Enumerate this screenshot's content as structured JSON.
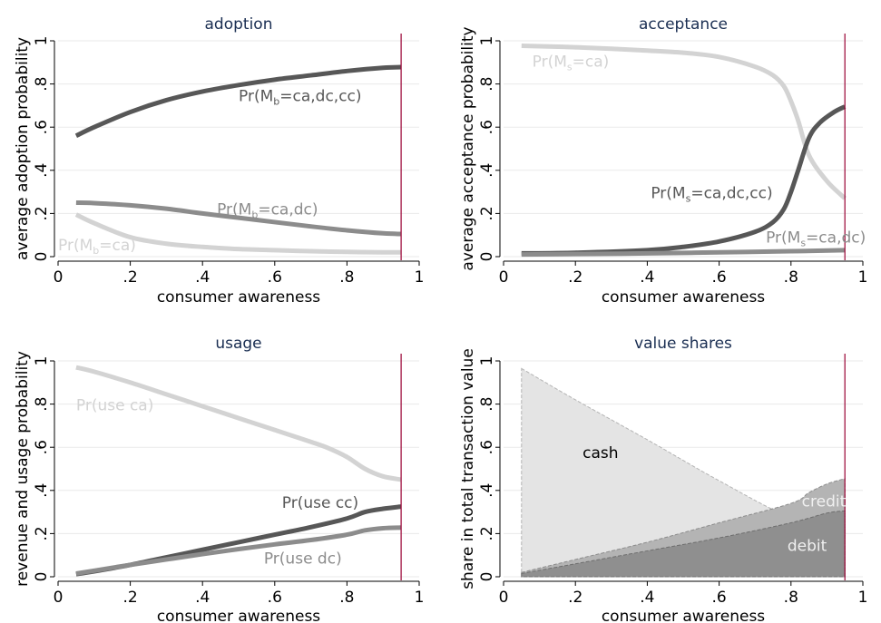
{
  "chart_data": [
    {
      "type": "line",
      "title": "adoption",
      "xlabel": "consumer awareness",
      "ylabel": "average adoption probability",
      "xlim": [
        0,
        1
      ],
      "ylim": [
        0,
        1
      ],
      "xticks": [
        "0",
        ".2",
        ".4",
        ".6",
        ".8",
        "1"
      ],
      "yticks": [
        "0",
        ".2",
        ".4",
        ".6",
        ".8",
        "1"
      ],
      "grid": true,
      "vline_x": 0.95,
      "vline_color": "#990033",
      "series": [
        {
          "name": "Pr(Mb=ca,dc,cc)",
          "label": {
            "main": "Pr(M",
            "sub": "b",
            "rest": "=ca,dc,cc)"
          },
          "color": "#575757",
          "x": [
            0.05,
            0.1,
            0.2,
            0.3,
            0.4,
            0.5,
            0.6,
            0.7,
            0.8,
            0.9,
            0.95
          ],
          "y": [
            0.56,
            0.6,
            0.67,
            0.725,
            0.765,
            0.795,
            0.82,
            0.84,
            0.86,
            0.875,
            0.878
          ]
        },
        {
          "name": "Pr(Mb=ca,dc)",
          "label": {
            "main": "Pr(M",
            "sub": "b",
            "rest": "=ca,dc)"
          },
          "color": "#8c8c8c",
          "x": [
            0.05,
            0.1,
            0.2,
            0.3,
            0.4,
            0.5,
            0.6,
            0.7,
            0.8,
            0.9,
            0.95
          ],
          "y": [
            0.25,
            0.248,
            0.238,
            0.222,
            0.2,
            0.18,
            0.16,
            0.14,
            0.122,
            0.108,
            0.105
          ]
        },
        {
          "name": "Pr(Mb=ca)",
          "label": {
            "main": "Pr(M",
            "sub": "b",
            "rest": "=ca)"
          },
          "color": "#d3d3d3",
          "x": [
            0.05,
            0.1,
            0.2,
            0.3,
            0.4,
            0.5,
            0.6,
            0.7,
            0.8,
            0.9,
            0.95
          ],
          "y": [
            0.195,
            0.155,
            0.09,
            0.06,
            0.045,
            0.035,
            0.03,
            0.025,
            0.022,
            0.02,
            0.02
          ]
        }
      ]
    },
    {
      "type": "line",
      "title": "acceptance",
      "xlabel": "consumer awareness",
      "ylabel": "average acceptance probability",
      "xlim": [
        0,
        1
      ],
      "ylim": [
        0,
        1
      ],
      "xticks": [
        "0",
        ".2",
        ".4",
        ".6",
        ".8",
        "1"
      ],
      "yticks": [
        "0",
        ".2",
        ".4",
        ".6",
        ".8",
        "1"
      ],
      "grid": true,
      "vline_x": 0.95,
      "vline_color": "#990033",
      "series": [
        {
          "name": "Pr(Ms=ca)",
          "label": {
            "main": "Pr(M",
            "sub": "s",
            "rest": "=ca)"
          },
          "color": "#d3d3d3",
          "x": [
            0.05,
            0.1,
            0.2,
            0.3,
            0.4,
            0.5,
            0.6,
            0.7,
            0.75,
            0.78,
            0.8,
            0.82,
            0.85,
            0.9,
            0.95
          ],
          "y": [
            0.977,
            0.975,
            0.97,
            0.963,
            0.955,
            0.945,
            0.925,
            0.88,
            0.84,
            0.79,
            0.72,
            0.63,
            0.47,
            0.35,
            0.27
          ]
        },
        {
          "name": "Pr(Ms=ca,dc,cc)",
          "label": {
            "main": "Pr(M",
            "sub": "s",
            "rest": "=ca,dc,cc)"
          },
          "color": "#575757",
          "x": [
            0.05,
            0.2,
            0.4,
            0.5,
            0.6,
            0.7,
            0.75,
            0.78,
            0.8,
            0.82,
            0.85,
            0.88,
            0.92,
            0.95
          ],
          "y": [
            0.015,
            0.018,
            0.03,
            0.045,
            0.07,
            0.115,
            0.16,
            0.22,
            0.3,
            0.4,
            0.55,
            0.62,
            0.67,
            0.695
          ]
        },
        {
          "name": "Pr(Ms=ca,dc)",
          "label": {
            "main": "Pr(M",
            "sub": "s",
            "rest": "=ca,dc)"
          },
          "color": "#8c8c8c",
          "x": [
            0.05,
            0.2,
            0.4,
            0.6,
            0.8,
            0.95
          ],
          "y": [
            0.01,
            0.012,
            0.015,
            0.02,
            0.025,
            0.03
          ]
        }
      ]
    },
    {
      "type": "line",
      "title": "usage",
      "xlabel": "consumer awareness",
      "ylabel": "revenue and usage probability",
      "xlim": [
        0,
        1
      ],
      "ylim": [
        0,
        1
      ],
      "xticks": [
        "0",
        ".2",
        ".4",
        ".6",
        ".8",
        "1"
      ],
      "yticks": [
        "0",
        ".2",
        ".4",
        ".6",
        ".8",
        "1"
      ],
      "grid": true,
      "vline_x": 0.95,
      "vline_color": "#990033",
      "series": [
        {
          "name": "Pr(use ca)",
          "label": {
            "main": "Pr(use ca)",
            "sub": "",
            "rest": ""
          },
          "color": "#d3d3d3",
          "x": [
            0.05,
            0.1,
            0.2,
            0.3,
            0.4,
            0.5,
            0.6,
            0.7,
            0.75,
            0.8,
            0.85,
            0.9,
            0.95
          ],
          "y": [
            0.97,
            0.95,
            0.9,
            0.845,
            0.79,
            0.735,
            0.68,
            0.625,
            0.595,
            0.555,
            0.5,
            0.465,
            0.45
          ]
        },
        {
          "name": "Pr(use cc)",
          "label": {
            "main": "Pr(use cc)",
            "sub": "",
            "rest": ""
          },
          "color": "#575757",
          "x": [
            0.05,
            0.1,
            0.2,
            0.3,
            0.4,
            0.5,
            0.6,
            0.7,
            0.8,
            0.85,
            0.9,
            0.95
          ],
          "y": [
            0.012,
            0.025,
            0.055,
            0.09,
            0.125,
            0.16,
            0.195,
            0.23,
            0.27,
            0.3,
            0.315,
            0.325
          ]
        },
        {
          "name": "Pr(use dc)",
          "label": {
            "main": "Pr(use dc)",
            "sub": "",
            "rest": ""
          },
          "color": "#8c8c8c",
          "x": [
            0.05,
            0.1,
            0.2,
            0.3,
            0.4,
            0.5,
            0.6,
            0.7,
            0.8,
            0.85,
            0.9,
            0.95
          ],
          "y": [
            0.015,
            0.028,
            0.055,
            0.08,
            0.105,
            0.128,
            0.15,
            0.17,
            0.195,
            0.215,
            0.225,
            0.228
          ]
        }
      ]
    },
    {
      "type": "area",
      "title": "value shares",
      "xlabel": "consumer awareness",
      "ylabel": "share in total transaction value",
      "xlim": [
        0,
        1
      ],
      "ylim": [
        0,
        1
      ],
      "xticks": [
        "0",
        ".2",
        ".4",
        ".6",
        ".8",
        "1"
      ],
      "yticks": [
        "0",
        ".2",
        ".4",
        ".6",
        ".8",
        "1"
      ],
      "grid": true,
      "vline_x": 0.95,
      "vline_color": "#990033",
      "series": [
        {
          "name": "cash",
          "label": {
            "main": "cash",
            "sub": "",
            "rest": ""
          },
          "fill": "#e4e4e4",
          "edge": "#b4b4b4",
          "text_color": "#000000",
          "x": [
            0.05,
            0.2,
            0.4,
            0.6,
            0.8,
            0.95
          ],
          "y": [
            0.965,
            0.82,
            0.635,
            0.445,
            0.275,
            0.23
          ]
        },
        {
          "name": "credit",
          "label": {
            "main": "credit",
            "sub": "",
            "rest": ""
          },
          "fill": "#b4b4b4",
          "edge": "#8c8c8c",
          "text_color": "#f0f0f0",
          "x": [
            0.05,
            0.2,
            0.4,
            0.6,
            0.8,
            0.85,
            0.9,
            0.95
          ],
          "y": [
            0.02,
            0.08,
            0.16,
            0.25,
            0.34,
            0.39,
            0.43,
            0.455
          ]
        },
        {
          "name": "debit",
          "label": {
            "main": "debit",
            "sub": "",
            "rest": ""
          },
          "fill": "#8f8f8f",
          "edge": "#6e6e6e",
          "text_color": "#f0f0f0",
          "x": [
            0.05,
            0.2,
            0.4,
            0.6,
            0.8,
            0.9,
            0.95
          ],
          "y": [
            0.015,
            0.06,
            0.12,
            0.18,
            0.25,
            0.295,
            0.305
          ]
        }
      ]
    }
  ]
}
